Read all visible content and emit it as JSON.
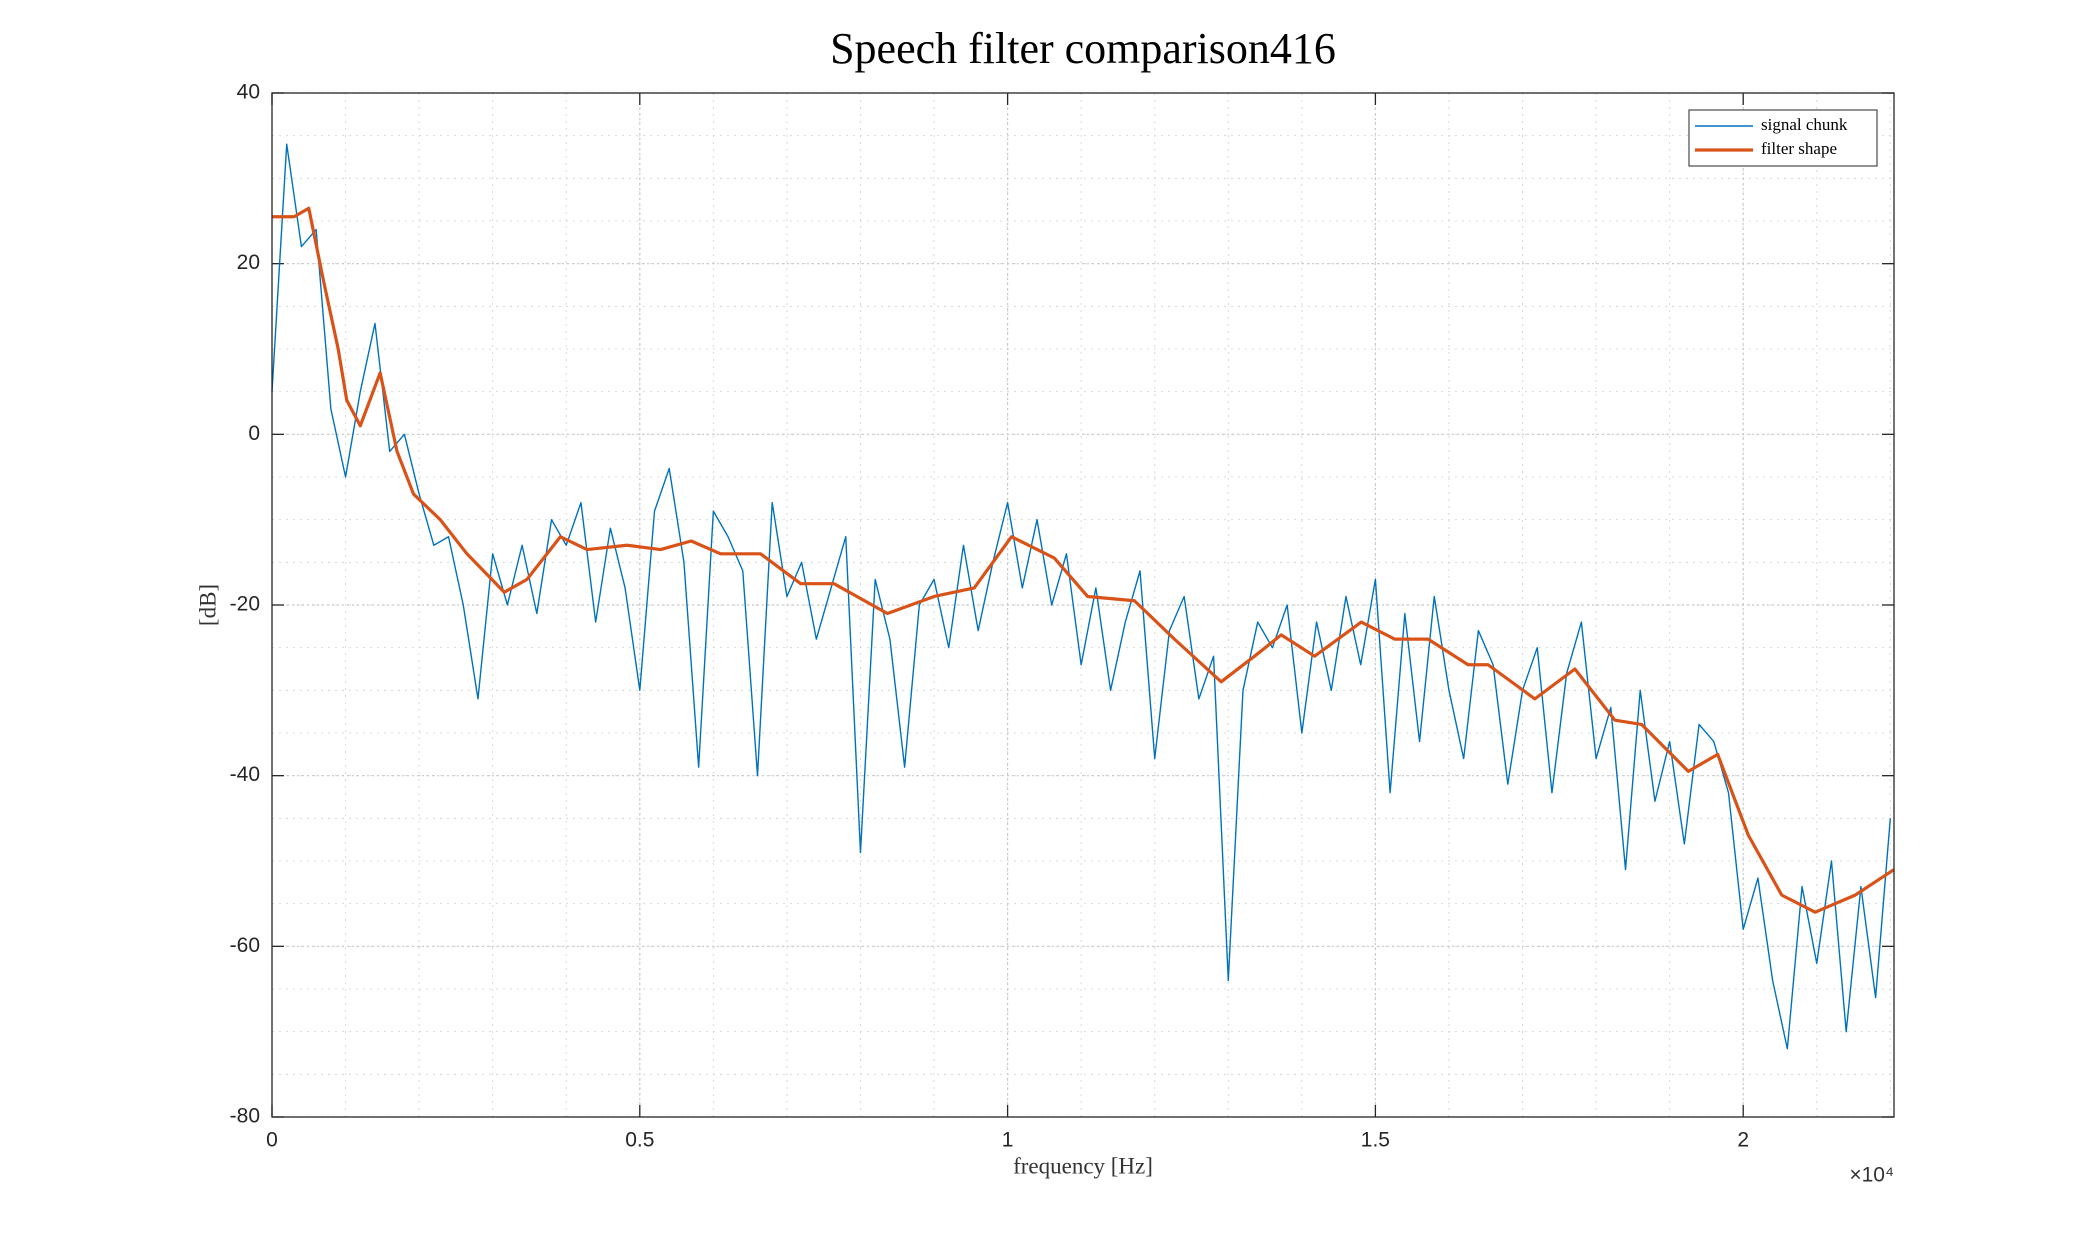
{
  "chart_data": {
    "type": "line",
    "title": "Speech filter comparison416",
    "x_label": "frequency [Hz]",
    "y_label": "[dB]",
    "x_multiplier": "×10⁴",
    "xlim": [
      0,
      22050
    ],
    "ylim": [
      -80,
      40
    ],
    "xticks": [
      0,
      {
        "value": 5000,
        "label": "0.5"
      },
      {
        "value": 10000,
        "label": "1"
      },
      {
        "value": 15000,
        "label": "1.5"
      },
      {
        "value": 20000,
        "label": "2"
      }
    ],
    "yticks": [
      -80,
      -60,
      -40,
      -20,
      0,
      20,
      40
    ],
    "grid": true,
    "minor_grid": true,
    "legend": "northeast",
    "series": [
      {
        "name": "signal chunk",
        "color": "#0072BD",
        "x": [
          0,
          200,
          400,
          600,
          800,
          1000,
          1200,
          1400,
          1600,
          1800,
          2000,
          2200,
          2400,
          2600,
          2800,
          3000,
          3200,
          3400,
          3600,
          3800,
          4000,
          4200,
          4400,
          4600,
          4800,
          5000,
          5200,
          5400,
          5600,
          5800,
          6000,
          6200,
          6400,
          6600,
          6800,
          7000,
          7200,
          7400,
          7600,
          7800,
          8000,
          8200,
          8400,
          8600,
          8800,
          9000,
          9200,
          9400,
          9600,
          9800,
          10000,
          10200,
          10400,
          10600,
          10800,
          11000,
          11200,
          11400,
          11600,
          11800,
          12000,
          12200,
          12400,
          12600,
          12800,
          13000,
          13200,
          13400,
          13600,
          13800,
          14000,
          14200,
          14400,
          14600,
          14800,
          15000,
          15200,
          15400,
          15600,
          15800,
          16000,
          16200,
          16400,
          16600,
          16800,
          17000,
          17200,
          17400,
          17600,
          17800,
          18000,
          18200,
          18400,
          18600,
          18800,
          19000,
          19200,
          19400,
          19600,
          19800,
          20000,
          20200,
          20400,
          20600,
          20800,
          21000,
          21200,
          21400,
          21600,
          21800,
          22000
        ],
        "values": [
          5,
          34,
          22,
          24,
          3,
          -5,
          5,
          13,
          -2,
          0,
          -7,
          -13,
          -12,
          -20,
          -31,
          -14,
          -20,
          -13,
          -21,
          -10,
          -13,
          -8,
          -22,
          -11,
          -18,
          -30,
          -9,
          -4,
          -15,
          -39,
          -9,
          -12,
          -16,
          -40,
          -8,
          -19,
          -15,
          -24,
          -18,
          -12,
          -49,
          -17,
          -24,
          -39,
          -20,
          -17,
          -25,
          -13,
          -23,
          -15,
          -8,
          -18,
          -10,
          -20,
          -14,
          -27,
          -18,
          -30,
          -22,
          -16,
          -38,
          -23,
          -19,
          -31,
          -26,
          -64,
          -30,
          -22,
          -25,
          -20,
          -35,
          -22,
          -30,
          -19,
          -27,
          -17,
          -42,
          -21,
          -36,
          -19,
          -30,
          -38,
          -23,
          -27,
          -41,
          -30,
          -25,
          -42,
          -28,
          -22,
          -38,
          -32,
          -51,
          -30,
          -43,
          -36,
          -48,
          -34,
          -36,
          -42,
          -58,
          -52,
          -64,
          -72,
          -53,
          -62,
          -50,
          -70,
          -53,
          -66,
          -45
        ]
      },
      {
        "name": "filter shape",
        "color": "#D95319",
        "x": [
          0,
          300,
          500,
          700,
          900,
          1016,
          1200,
          1470,
          1700,
          1924,
          2287,
          2650,
          3158,
          3466,
          3920,
          4283,
          4827,
          5281,
          5699,
          6098,
          6642,
          7187,
          7640,
          8366,
          9001,
          9546,
          10054,
          10635,
          11088,
          11724,
          12268,
          12903,
          13357,
          13720,
          14173,
          14808,
          15262,
          15716,
          16260,
          16532,
          17167,
          17712,
          18256,
          18619,
          19254,
          19653,
          20071,
          20524,
          20978,
          21522,
          22050
        ],
        "values": [
          25.5,
          25.5,
          26.5,
          18,
          10,
          4,
          1,
          7.2,
          -2,
          -7,
          -10,
          -14,
          -18.5,
          -17,
          -12,
          -13.5,
          -13,
          -13.5,
          -12.5,
          -14,
          -14,
          -17.5,
          -17.5,
          -21,
          -19,
          -18,
          -12,
          -14.5,
          -19,
          -19.5,
          -24,
          -29,
          -26,
          -23.5,
          -26,
          -22,
          -24,
          -24,
          -27,
          -27,
          -31,
          -27.5,
          -33.5,
          -34,
          -39.5,
          -37.5,
          -47,
          -54,
          -56,
          -54,
          -51
        ]
      }
    ]
  }
}
